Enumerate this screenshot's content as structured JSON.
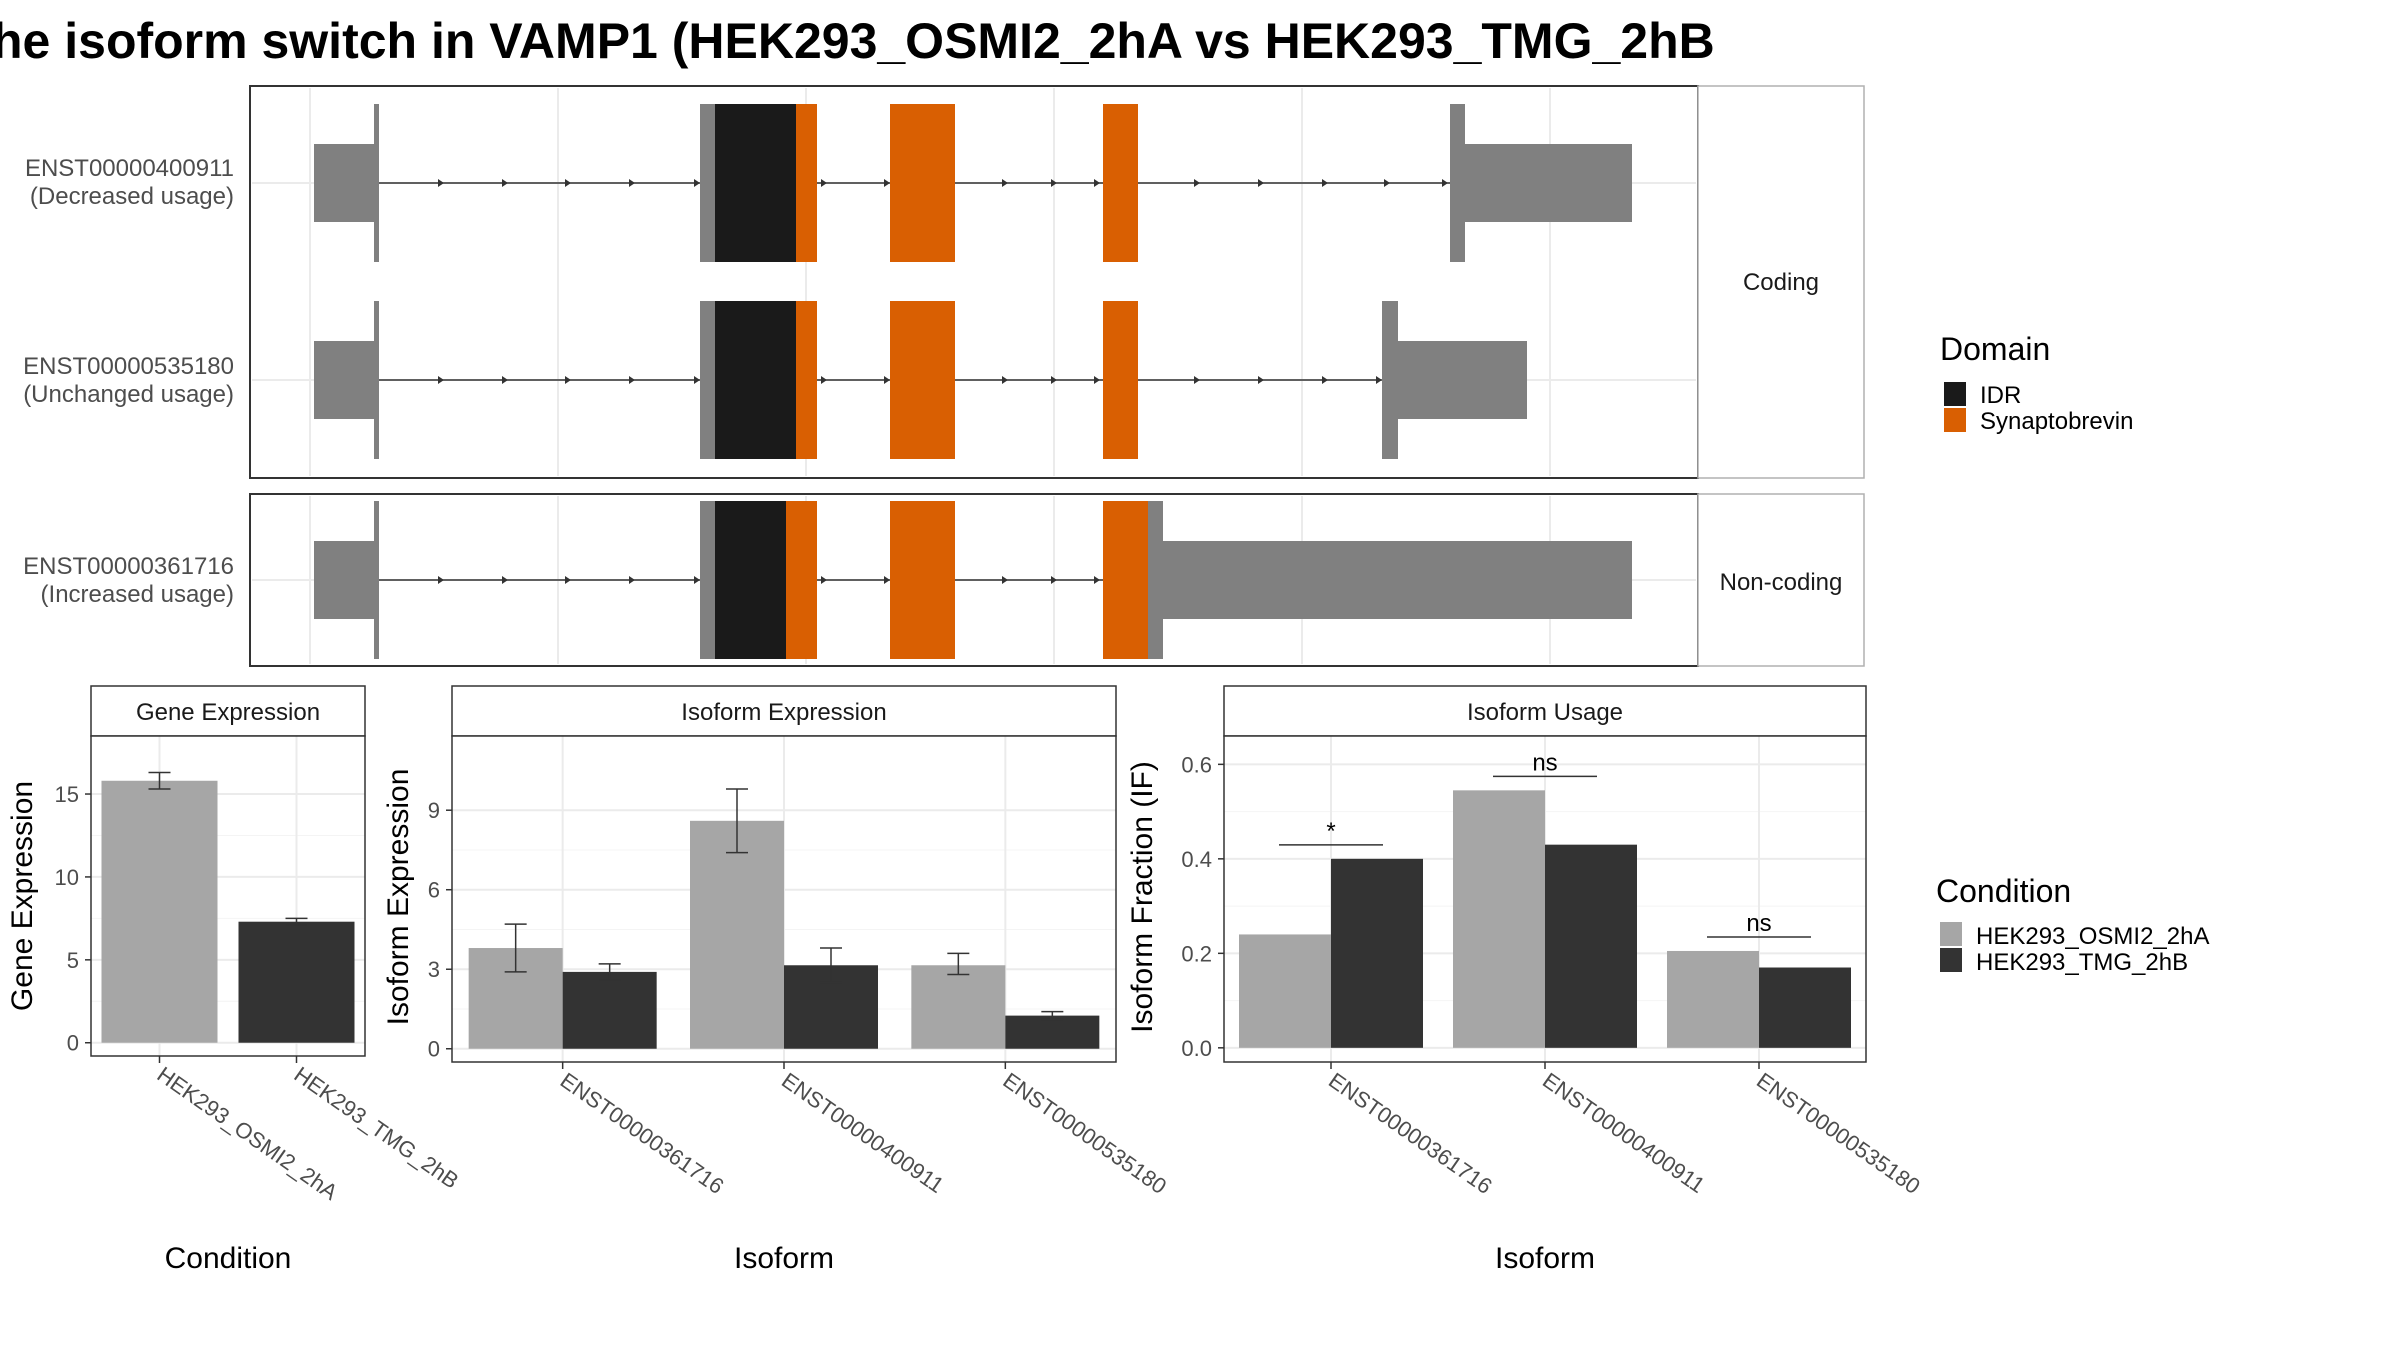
{
  "title": "he isoform switch in VAMP1 (HEK293_OSMI2_2hA vs HEK293_TMG_2hB",
  "colors": {
    "exon": "#808080",
    "idr": "#1a1a1a",
    "synaptobrevin": "#d95f02",
    "osmi": "#a6a6a6",
    "tmg": "#333333",
    "grid": "#ebebeb",
    "strip": "#ffffff",
    "border": "#333333"
  },
  "structure": {
    "groups": [
      {
        "label": "Coding",
        "tracks": [
          {
            "id": "ENST00000400911",
            "note": "(Decreased usage)"
          },
          {
            "id": "ENST00000535180",
            "note": "(Unchanged usage)"
          }
        ]
      },
      {
        "label": "Non-coding",
        "tracks": [
          {
            "id": "ENST00000361716",
            "note": "(Increased usage)"
          }
        ]
      }
    ],
    "legend_title": "Domain",
    "legend_items": [
      {
        "label": "IDR",
        "color": "#1a1a1a"
      },
      {
        "label": "Synaptobrevin",
        "color": "#d95f02"
      }
    ]
  },
  "chart_data": [
    {
      "type": "bar",
      "strip": "Gene Expression",
      "xlabel": "Condition",
      "ylabel": "Gene Expression",
      "categories": [
        "HEK293_OSMI2_2hA",
        "HEK293_TMG_2hB"
      ],
      "values": [
        15.8,
        7.3
      ],
      "errors": [
        [
          15.3,
          16.3
        ],
        [
          7.1,
          7.5
        ]
      ],
      "yticks": [
        "0",
        "5",
        "10",
        "15"
      ],
      "ylim": [
        -0.8,
        18.5
      ],
      "grid": true
    },
    {
      "type": "bar",
      "strip": "Isoform Expression",
      "xlabel": "Isoform",
      "ylabel": "Isoform Expression",
      "categories": [
        "ENST00000361716",
        "ENST00000400911",
        "ENST00000535180"
      ],
      "series": [
        {
          "name": "HEK293_OSMI2_2hA",
          "values": [
            3.8,
            8.6,
            3.15
          ]
        },
        {
          "name": "HEK293_TMG_2hB",
          "values": [
            2.9,
            3.15,
            1.25
          ]
        }
      ],
      "errors": [
        [
          [
            2.9,
            4.7
          ],
          [
            7.4,
            9.8
          ],
          [
            2.8,
            3.6
          ]
        ],
        [
          [
            2.6,
            3.2
          ],
          [
            2.5,
            3.8
          ],
          [
            1.1,
            1.4
          ]
        ]
      ],
      "yticks": [
        "0",
        "3",
        "6",
        "9"
      ],
      "ylim": [
        -0.5,
        11.8
      ],
      "grid": true
    },
    {
      "type": "bar",
      "strip": "Isoform Usage",
      "xlabel": "Isoform",
      "ylabel": "Isoform Fraction (IF)",
      "categories": [
        "ENST00000361716",
        "ENST00000400911",
        "ENST00000535180"
      ],
      "series": [
        {
          "name": "HEK293_OSMI2_2hA",
          "values": [
            0.24,
            0.545,
            0.205
          ]
        },
        {
          "name": "HEK293_TMG_2hB",
          "values": [
            0.4,
            0.43,
            0.17
          ]
        }
      ],
      "significance": [
        "*",
        "ns",
        "ns"
      ],
      "yticks": [
        "0.0",
        "0.2",
        "0.4",
        "0.6"
      ],
      "ylim": [
        -0.03,
        0.66
      ],
      "grid": true
    }
  ],
  "condition_legend": {
    "title": "Condition",
    "items": [
      {
        "label": "HEK293_OSMI2_2hA",
        "color": "#a6a6a6"
      },
      {
        "label": "HEK293_TMG_2hB",
        "color": "#333333"
      }
    ]
  }
}
